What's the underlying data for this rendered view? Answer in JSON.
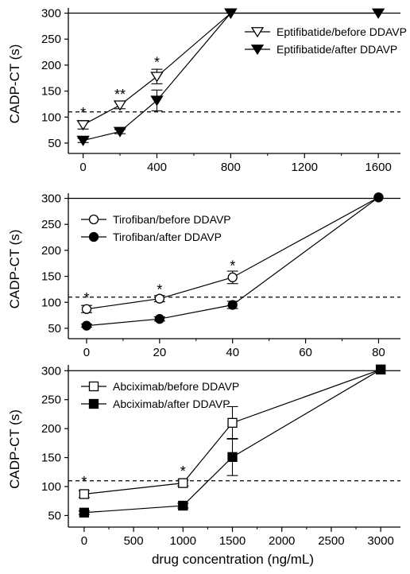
{
  "figure": {
    "xlabel": "drug concentration (ng/mL)"
  },
  "chart_data": [
    {
      "type": "line",
      "ylabel": "CADP-CT (s)",
      "xlim": [
        -80,
        1720
      ],
      "ylim": [
        30,
        310
      ],
      "xticks": [
        0,
        400,
        800,
        1200,
        1600
      ],
      "yticks": [
        50,
        100,
        150,
        200,
        250,
        300
      ],
      "reference_lines": [
        {
          "y": 300,
          "style": "solid"
        },
        {
          "y": 110,
          "style": "dashed"
        }
      ],
      "legend_position": "top-right",
      "series": [
        {
          "name": "Eptifibatide/before DDAVP",
          "marker": "triangle-down-open",
          "x": [
            0,
            200,
            400,
            800
          ],
          "y": [
            85,
            123,
            178,
            300
          ],
          "err": [
            8,
            7,
            14,
            0
          ]
        },
        {
          "name": "Eptifibatide/after DDAVP",
          "marker": "triangle-down-filled",
          "x": [
            0,
            200,
            400,
            800,
            1600
          ],
          "y": [
            55,
            72,
            132,
            300,
            300
          ],
          "err": [
            4,
            4,
            20,
            0,
            0
          ]
        }
      ],
      "annotations": [
        {
          "x": 0,
          "y": 108,
          "text": "*"
        },
        {
          "x": 200,
          "y": 143,
          "text": "**"
        },
        {
          "x": 400,
          "y": 205,
          "text": "*"
        }
      ]
    },
    {
      "type": "line",
      "ylabel": "CADP-CT (s)",
      "xlim": [
        -5,
        86
      ],
      "ylim": [
        30,
        310
      ],
      "xticks": [
        0,
        20,
        40,
        60,
        80
      ],
      "yticks": [
        50,
        100,
        150,
        200,
        250,
        300
      ],
      "reference_lines": [
        {
          "y": 300,
          "style": "solid"
        },
        {
          "y": 110,
          "style": "dashed"
        }
      ],
      "legend_position": "top-left",
      "series": [
        {
          "name": "Tirofiban/before DDAVP",
          "marker": "circle-open",
          "x": [
            0,
            20,
            40,
            80
          ],
          "y": [
            87,
            107,
            148,
            302
          ],
          "err": [
            7,
            6,
            12,
            0
          ]
        },
        {
          "name": "Tirofiban/after DDAVP",
          "marker": "circle-filled",
          "x": [
            0,
            20,
            40,
            80
          ],
          "y": [
            55,
            68,
            95,
            302
          ],
          "err": [
            3,
            4,
            7,
            0
          ]
        }
      ],
      "annotations": [
        {
          "x": 0,
          "y": 108,
          "text": "*"
        },
        {
          "x": 20,
          "y": 124,
          "text": "*"
        },
        {
          "x": 40,
          "y": 170,
          "text": "*"
        }
      ]
    },
    {
      "type": "line",
      "ylabel": "CADP-CT (s)",
      "xlim": [
        -160,
        3200
      ],
      "ylim": [
        30,
        310
      ],
      "xticks": [
        0,
        500,
        1000,
        1500,
        2000,
        2500,
        3000
      ],
      "yticks": [
        50,
        100,
        150,
        200,
        250,
        300
      ],
      "reference_lines": [
        {
          "y": 300,
          "style": "solid"
        },
        {
          "y": 110,
          "style": "dashed"
        }
      ],
      "legend_position": "top-left",
      "series": [
        {
          "name": "Abciximab/before DDAVP",
          "marker": "square-open",
          "x": [
            0,
            1000,
            1500,
            3000
          ],
          "y": [
            87,
            106,
            210,
            302
          ],
          "err": [
            6,
            5,
            28,
            0
          ]
        },
        {
          "name": "Abciximab/after DDAVP",
          "marker": "square-filled",
          "x": [
            0,
            1000,
            1500,
            3000
          ],
          "y": [
            55,
            67,
            151,
            302
          ],
          "err": [
            3,
            4,
            32,
            0
          ]
        }
      ],
      "annotations": [
        {
          "x": 0,
          "y": 108,
          "text": "*"
        },
        {
          "x": 1000,
          "y": 126,
          "text": "*"
        }
      ]
    }
  ]
}
